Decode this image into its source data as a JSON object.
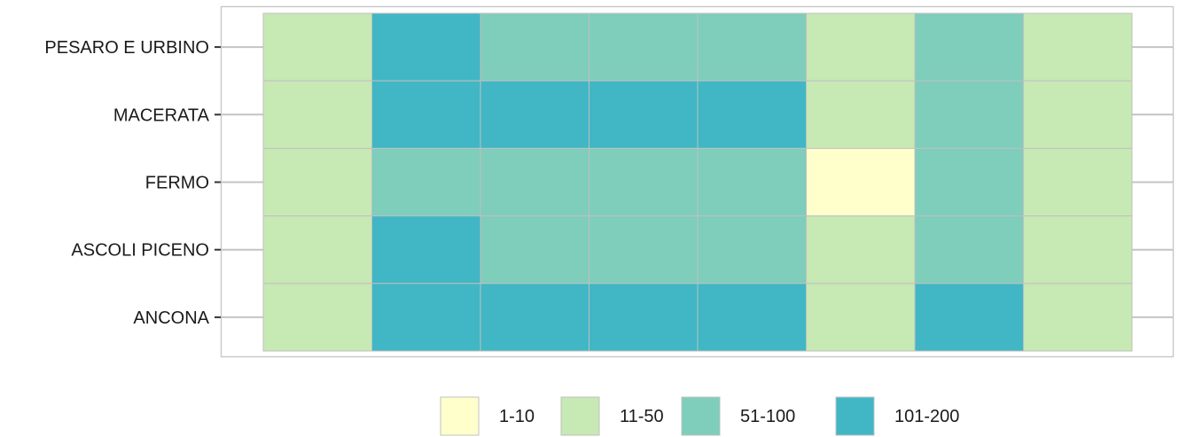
{
  "chart_data": {
    "type": "heatmap",
    "title": "",
    "xlabel": "",
    "ylabel": "",
    "rows": [
      "PESARO E URBINO",
      "MACERATA",
      "FERMO",
      "ASCOLI PICENO",
      "ANCONA"
    ],
    "n_columns": 8,
    "values": [
      [
        "11-50",
        "101-200",
        "51-100",
        "51-100",
        "51-100",
        "11-50",
        "51-100",
        "11-50"
      ],
      [
        "11-50",
        "101-200",
        "101-200",
        "101-200",
        "101-200",
        "11-50",
        "51-100",
        "11-50"
      ],
      [
        "11-50",
        "51-100",
        "51-100",
        "51-100",
        "51-100",
        "1-10",
        "51-100",
        "11-50"
      ],
      [
        "11-50",
        "101-200",
        "51-100",
        "51-100",
        "51-100",
        "11-50",
        "51-100",
        "11-50"
      ],
      [
        "11-50",
        "101-200",
        "101-200",
        "101-200",
        "101-200",
        "11-50",
        "101-200",
        "11-50"
      ]
    ],
    "legend": {
      "position": "bottom",
      "categories": [
        {
          "label": "1-10",
          "color": "#ffffcc"
        },
        {
          "label": "11-50",
          "color": "#c7e9b4"
        },
        {
          "label": "51-100",
          "color": "#7fcdbb"
        },
        {
          "label": "101-200",
          "color": "#41b6c4"
        }
      ]
    },
    "grid": true
  }
}
